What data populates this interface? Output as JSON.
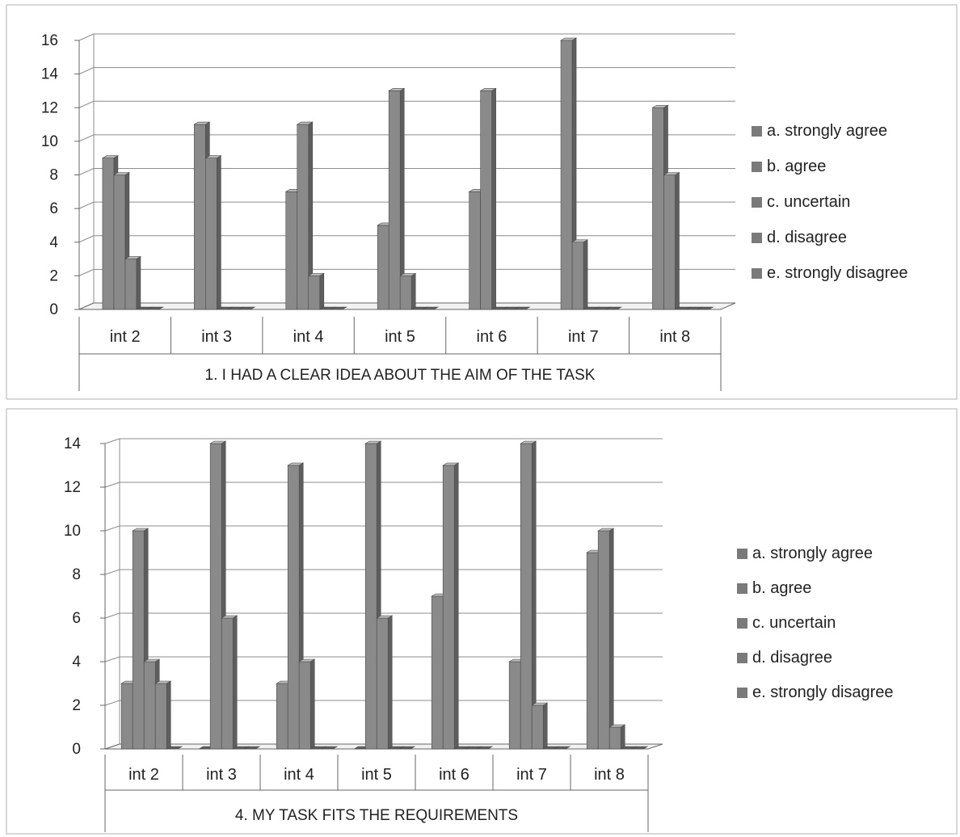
{
  "chart_data": [
    {
      "type": "bar",
      "title": "",
      "xlabel": "1. I HAD A CLEAR IDEA ABOUT THE AIM OF THE TASK",
      "ylabel": "",
      "categories": [
        "int 2",
        "int 3",
        "int 4",
        "int 5",
        "int 6",
        "int 7",
        "int 8"
      ],
      "yticks": [
        "0",
        "2",
        "4",
        "6",
        "8",
        "10",
        "12",
        "14",
        "16"
      ],
      "ylim": [
        0,
        16
      ],
      "series": [
        {
          "name": "a. strongly agree",
          "values": [
            9,
            11,
            7,
            5,
            7,
            16,
            12
          ]
        },
        {
          "name": "b. agree",
          "values": [
            8,
            9,
            11,
            13,
            13,
            4,
            8
          ]
        },
        {
          "name": "c. uncertain",
          "values": [
            3,
            0,
            2,
            2,
            0,
            0,
            0
          ]
        },
        {
          "name": "d. disagree",
          "values": [
            0,
            0,
            0,
            0,
            0,
            0,
            0
          ]
        },
        {
          "name": "e. strongly disagree",
          "values": [
            0,
            0,
            0,
            0,
            0,
            0,
            0
          ]
        }
      ],
      "grid": true,
      "legend": "right"
    },
    {
      "type": "bar",
      "title": "",
      "xlabel": "4. MY TASK FITS THE REQUIREMENTS",
      "ylabel": "",
      "categories": [
        "int 2",
        "int 3",
        "int 4",
        "int 5",
        "int 6",
        "int 7",
        "int 8"
      ],
      "yticks": [
        "0",
        "2",
        "4",
        "6",
        "8",
        "10",
        "12",
        "14"
      ],
      "ylim": [
        0,
        14
      ],
      "series": [
        {
          "name": "a. strongly agree",
          "values": [
            3,
            0,
            3,
            0,
            7,
            4,
            9
          ]
        },
        {
          "name": "b. agree",
          "values": [
            10,
            14,
            13,
            14,
            13,
            14,
            10
          ]
        },
        {
          "name": "c. uncertain",
          "values": [
            4,
            6,
            4,
            6,
            0,
            2,
            1
          ]
        },
        {
          "name": "d. disagree",
          "values": [
            3,
            0,
            0,
            0,
            0,
            0,
            0
          ]
        },
        {
          "name": "e. strongly disagree",
          "values": [
            0,
            0,
            0,
            0,
            0,
            0,
            0
          ]
        }
      ],
      "grid": true,
      "legend": "right"
    }
  ],
  "colors": {
    "bar_front": "#8a8a8a",
    "bar_side": "#5e5e5e",
    "bar_top": "#b8b8b8",
    "legend_swatch": "#7a7a7a",
    "grid": "#8c8c8c",
    "axis": "#666666"
  }
}
